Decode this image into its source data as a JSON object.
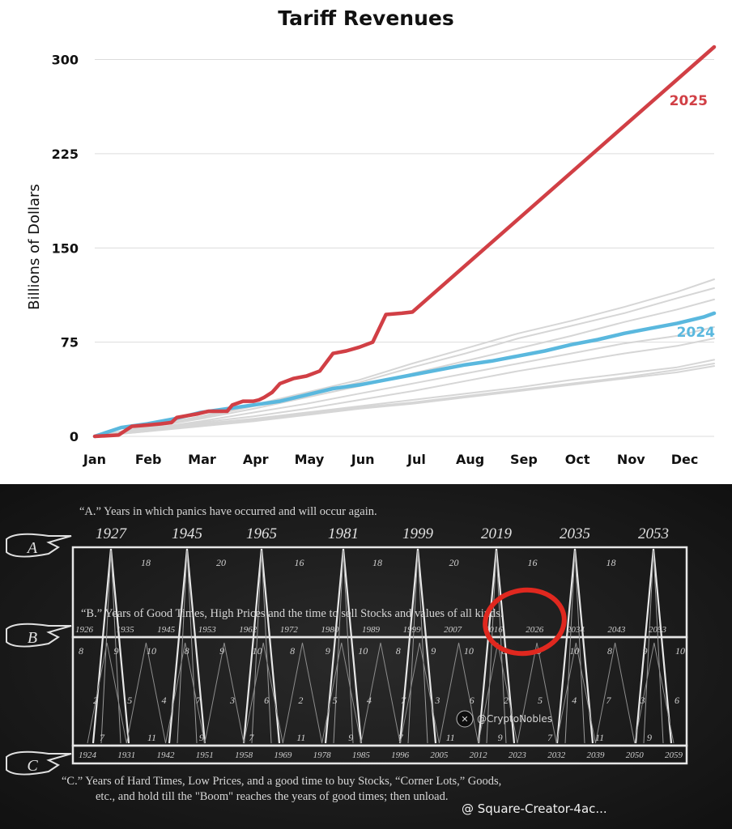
{
  "chart_data": {
    "type": "line",
    "title": "Tariff Revenues",
    "ylabel": "Billions of Dollars",
    "xlabel": "",
    "ylim": [
      0,
      310
    ],
    "yticks": [
      0,
      75,
      150,
      225,
      300
    ],
    "x_ticks": [
      "Jan",
      "Feb",
      "Mar",
      "Apr",
      "May",
      "Jun",
      "Jul",
      "Aug",
      "Sep",
      "Oct",
      "Nov",
      "Dec"
    ],
    "grid": "horizontal",
    "legend": "inline labels at right",
    "series": [
      {
        "name": "2025",
        "color": "#d13f45",
        "x": [
          0,
          0.45,
          0.7,
          1.0,
          1.25,
          1.45,
          1.55,
          1.95,
          2.15,
          2.5,
          2.6,
          2.8,
          3.0,
          3.1,
          3.2,
          3.35,
          3.5,
          3.75,
          4.0,
          4.25,
          4.5,
          4.75,
          5.0,
          5.25,
          5.5,
          5.8,
          6.0,
          11.7
        ],
        "y": [
          0,
          1,
          8,
          9,
          10,
          11,
          15,
          18,
          20,
          20,
          25,
          28,
          28,
          29,
          31,
          35,
          42,
          46,
          48,
          52,
          66,
          68,
          71,
          75,
          97,
          98,
          99,
          310
        ]
      },
      {
        "name": "2024",
        "color": "#5ab8de",
        "x": [
          0,
          0.5,
          1.0,
          1.5,
          2.0,
          2.5,
          3.0,
          3.5,
          4.0,
          4.5,
          5.0,
          5.5,
          6.0,
          6.5,
          7.0,
          7.5,
          8.0,
          8.5,
          9.0,
          9.5,
          10.0,
          10.5,
          11.0,
          11.5,
          11.7
        ],
        "y": [
          0,
          7,
          10,
          14,
          19,
          22,
          25,
          28,
          33,
          38,
          41,
          45,
          49,
          53,
          57,
          60,
          64,
          68,
          73,
          77,
          82,
          86,
          90,
          95,
          98
        ]
      },
      {
        "name": "",
        "color": "#d6d6d6",
        "x": [
          0,
          1,
          2,
          3,
          4,
          5,
          6,
          7,
          8,
          9,
          10,
          11,
          11.7
        ],
        "y": [
          0,
          8,
          16,
          25,
          35,
          45,
          58,
          70,
          82,
          92,
          103,
          115,
          125
        ]
      },
      {
        "name": "",
        "color": "#d6d6d6",
        "x": [
          0,
          1,
          2,
          3,
          4,
          5,
          6,
          7,
          8,
          9,
          10,
          11,
          11.7
        ],
        "y": [
          0,
          8,
          15,
          24,
          33,
          43,
          55,
          66,
          78,
          88,
          98,
          110,
          118
        ]
      },
      {
        "name": "",
        "color": "#d6d6d6",
        "x": [
          0,
          1,
          2,
          3,
          4,
          5,
          6,
          7,
          8,
          9,
          10,
          11,
          11.7
        ],
        "y": [
          0,
          7,
          14,
          22,
          31,
          40,
          50,
          60,
          70,
          80,
          91,
          101,
          109
        ]
      },
      {
        "name": "",
        "color": "#d6d6d6",
        "x": [
          0,
          1,
          2,
          3,
          4,
          5,
          6,
          7,
          8,
          9,
          10,
          11,
          11.7
        ],
        "y": [
          0,
          6,
          12,
          19,
          26,
          34,
          42,
          50,
          58,
          66,
          74,
          80,
          87
        ]
      },
      {
        "name": "",
        "color": "#d6d6d6",
        "x": [
          0,
          1,
          2,
          3,
          4,
          5,
          6,
          7,
          8,
          9,
          10,
          11,
          11.7
        ],
        "y": [
          0,
          6,
          11,
          16,
          22,
          29,
          36,
          44,
          52,
          59,
          66,
          72,
          78
        ]
      },
      {
        "name": "",
        "color": "#d6d6d6",
        "x": [
          0,
          1,
          2,
          3,
          4,
          5,
          6,
          7,
          8,
          9,
          10,
          11,
          11.7
        ],
        "y": [
          0,
          5,
          10,
          14,
          19,
          24,
          29,
          34,
          39,
          45,
          50,
          55,
          61
        ]
      },
      {
        "name": "",
        "color": "#d6d6d6",
        "x": [
          0,
          1,
          2,
          3,
          4,
          5,
          6,
          7,
          8,
          9,
          10,
          11,
          11.7
        ],
        "y": [
          0,
          4,
          9,
          13,
          18,
          23,
          27,
          32,
          37,
          42,
          47,
          53,
          58
        ]
      },
      {
        "name": "",
        "color": "#d6d6d6",
        "x": [
          0,
          1,
          2,
          3,
          4,
          5,
          6,
          7,
          8,
          9,
          10,
          11,
          11.7
        ],
        "y": [
          0,
          4,
          8,
          12,
          17,
          22,
          26,
          31,
          36,
          41,
          46,
          51,
          56
        ]
      }
    ]
  },
  "cycle_chart": {
    "row_a_caption": "“A.” Years in which panics have occurred and will occur again.",
    "row_b_caption": "“B.” Years of Good Times, High Prices and the time to sell Stocks and values of all kinds.",
    "row_c_caption_line1": "“C.”    Years of Hard Times, Low Prices, and a good time to buy Stocks, “Corner Lots,” Goods,",
    "row_c_caption_line2": "etc., and hold till  the \"Boom\" reaches the years of good times; then unload.",
    "row_a_marker": "A",
    "row_b_marker": "B",
    "row_c_marker": "C",
    "panic_years": [
      "1927",
      "1945",
      "1965",
      "1981",
      "1999",
      "2019",
      "2035",
      "2053"
    ],
    "panic_intervals": [
      "18",
      "20",
      "16",
      "18",
      "20",
      "16",
      "18"
    ],
    "good_years": [
      "1926",
      "1935",
      "1945",
      "1953",
      "1962",
      "1972",
      "1980",
      "1989",
      "1999",
      "2007",
      "2016",
      "2026",
      "2034",
      "2043",
      "2053"
    ],
    "hard_years": [
      "1924",
      "1931",
      "1942",
      "1951",
      "1958",
      "1969",
      "1978",
      "1985",
      "1996",
      "2005",
      "2012",
      "2023",
      "2032",
      "2039",
      "2050",
      "2059"
    ],
    "inner_numbers_top": [
      "8",
      "9",
      "10",
      "8",
      "9",
      "10",
      "8",
      "9",
      "10",
      "8",
      "9",
      "10",
      "8",
      "9",
      "10",
      "8",
      "9",
      "10"
    ],
    "inner_numbers_mid": [
      "2",
      "5",
      "4",
      "7",
      "3",
      "6",
      "2",
      "5",
      "4",
      "7",
      "3",
      "6",
      "2",
      "5",
      "4",
      "7",
      "3",
      "6"
    ],
    "inner_numbers_bottom": [
      "7",
      "11",
      "9",
      "7",
      "11",
      "9",
      "7",
      "11",
      "9",
      "7",
      "11",
      "9"
    ],
    "social_handle": "@CryptoNobles",
    "highlight_color": "#e0281f"
  },
  "watermark_text": "@ Square-Creator-4ac..."
}
